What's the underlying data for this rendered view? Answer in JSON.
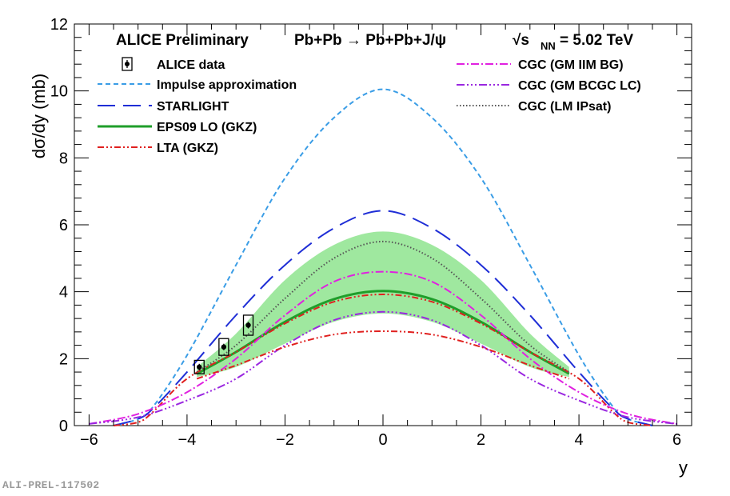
{
  "chart_data": {
    "type": "line",
    "title": "ALICE Preliminary",
    "reaction": "Pb+Pb → Pb+Pb+J/ψ",
    "energy_label": "√s",
    "energy_sub": "NN",
    "energy_value": " = 5.02 TeV",
    "xlabel": "y",
    "ylabel": "dσ/dy (mb)",
    "xlim": [
      -6.3,
      6.3
    ],
    "ylim": [
      0,
      12
    ],
    "x_ticks": [
      -6,
      -4,
      -2,
      0,
      2,
      4,
      6
    ],
    "x_tick_labels": [
      "−6",
      "−4",
      "−2",
      "0",
      "2",
      "4",
      "6"
    ],
    "y_ticks": [
      0,
      2,
      4,
      6,
      8,
      10,
      12
    ],
    "y_tick_labels": [
      "0",
      "2",
      "4",
      "6",
      "8",
      "10",
      "12"
    ],
    "band": {
      "name": "EPS09 LO (GKZ) uncertainty",
      "x": [
        -3.8,
        -3,
        -2,
        -1,
        0,
        1,
        2,
        3,
        3.8
      ],
      "low": [
        1.45,
        1.75,
        2.45,
        3.1,
        3.35,
        3.1,
        2.45,
        1.75,
        1.45
      ],
      "high": [
        1.75,
        2.75,
        4.35,
        5.4,
        5.8,
        5.4,
        4.35,
        2.75,
        1.75
      ]
    },
    "series": [
      {
        "name": "Impulse approximation",
        "color": "#3a9de6",
        "dash": "6,4",
        "x": [
          -5.5,
          -5,
          -4.7,
          -4,
          -3,
          -2,
          -1,
          0,
          1,
          2,
          3,
          4,
          4.7,
          5,
          5.5
        ],
        "y": [
          0,
          0.2,
          0.55,
          2.1,
          4.8,
          7.4,
          9.2,
          10.05,
          9.2,
          7.4,
          4.8,
          2.1,
          0.55,
          0.2,
          0
        ]
      },
      {
        "name": "STARLIGHT",
        "color": "#1f2ed6",
        "dash": "22,10",
        "x": [
          -5.5,
          -5,
          -4.7,
          -4,
          -3,
          -2,
          -1,
          0,
          1,
          2,
          3,
          4,
          4.7,
          5,
          5.5
        ],
        "y": [
          0,
          0.2,
          0.5,
          1.6,
          3.3,
          4.8,
          5.9,
          6.42,
          5.9,
          4.8,
          3.3,
          1.6,
          0.5,
          0.2,
          0
        ]
      },
      {
        "name": "EPS09 LO (GKZ)",
        "color": "#1f9e2a",
        "dash": "",
        "x": [
          -3.8,
          -3,
          -2,
          -1,
          0,
          1,
          2,
          3,
          3.8
        ],
        "y": [
          1.55,
          2.2,
          3.1,
          3.78,
          4.02,
          3.78,
          3.1,
          2.2,
          1.55
        ]
      },
      {
        "name": "LTA (GKZ)",
        "color": "#e0201f",
        "dash": "8,3,2,3,2,3",
        "x": [
          -5.5,
          -5,
          -4.7,
          -4,
          -3,
          -2,
          -1,
          0,
          1,
          2,
          3,
          4,
          4.7,
          5,
          5.5
        ],
        "y": [
          0,
          0.1,
          0.4,
          1.4,
          2.2,
          3.05,
          3.7,
          3.92,
          3.7,
          3.05,
          2.2,
          1.4,
          0.4,
          0.1,
          0
        ]
      },
      {
        "name": "CGC (GM IIM BG)",
        "color": "#e021e0",
        "dash": "10,3,2,3",
        "x": [
          -6,
          -5,
          -4,
          -3,
          -2,
          -1,
          0,
          1,
          2,
          3,
          4,
          5,
          6
        ],
        "y": [
          0.05,
          0.35,
          1.0,
          2.0,
          3.3,
          4.3,
          4.6,
          4.3,
          3.3,
          2.0,
          1.0,
          0.35,
          0.05
        ]
      },
      {
        "name": "CGC (GM BCGC LC)",
        "color": "#9a27e0",
        "dash": "10,3,2,3,2,3,2,3",
        "x": [
          -6,
          -5,
          -4,
          -3,
          -2,
          -1,
          0,
          1,
          2,
          3,
          4,
          5,
          6
        ],
        "y": [
          0.05,
          0.25,
          0.75,
          1.4,
          2.4,
          3.15,
          3.4,
          3.15,
          2.4,
          1.4,
          0.75,
          0.25,
          0.05
        ]
      },
      {
        "name": "CGC (LM IPsat)",
        "color": "#555555",
        "dash": "1.5,2.5",
        "x": [
          -3.8,
          -3,
          -2,
          -1,
          0,
          1,
          2,
          3,
          3.8
        ],
        "y": [
          1.6,
          2.4,
          3.8,
          5.0,
          5.5,
          5.0,
          3.8,
          2.4,
          1.6
        ]
      },
      {
        "name": "CGC lower",
        "color": "#e0201f",
        "dash": "8,3,2,3,2,3",
        "x": [
          -3.8,
          -3,
          -2,
          -1,
          0,
          1,
          2,
          3,
          3.8
        ],
        "y": [
          1.4,
          1.8,
          2.35,
          2.72,
          2.82,
          2.72,
          2.35,
          1.8,
          1.4
        ]
      }
    ],
    "data_points": {
      "name": "ALICE data",
      "x": [
        -3.75,
        -3.25,
        -2.75
      ],
      "y": [
        1.75,
        2.35,
        3.0
      ],
      "syst": [
        0.2,
        0.25,
        0.3
      ]
    },
    "legend_left": [
      "ALICE data",
      "Impulse approximation",
      "STARLIGHT",
      "EPS09 LO (GKZ)",
      "LTA (GKZ)"
    ],
    "legend_right": [
      "CGC (GM IIM BG)",
      "CGC (GM BCGC LC)",
      "CGC (LM IPsat)"
    ],
    "legend_placement": "top"
  },
  "figure_ref": "ALI-PREL-117502"
}
